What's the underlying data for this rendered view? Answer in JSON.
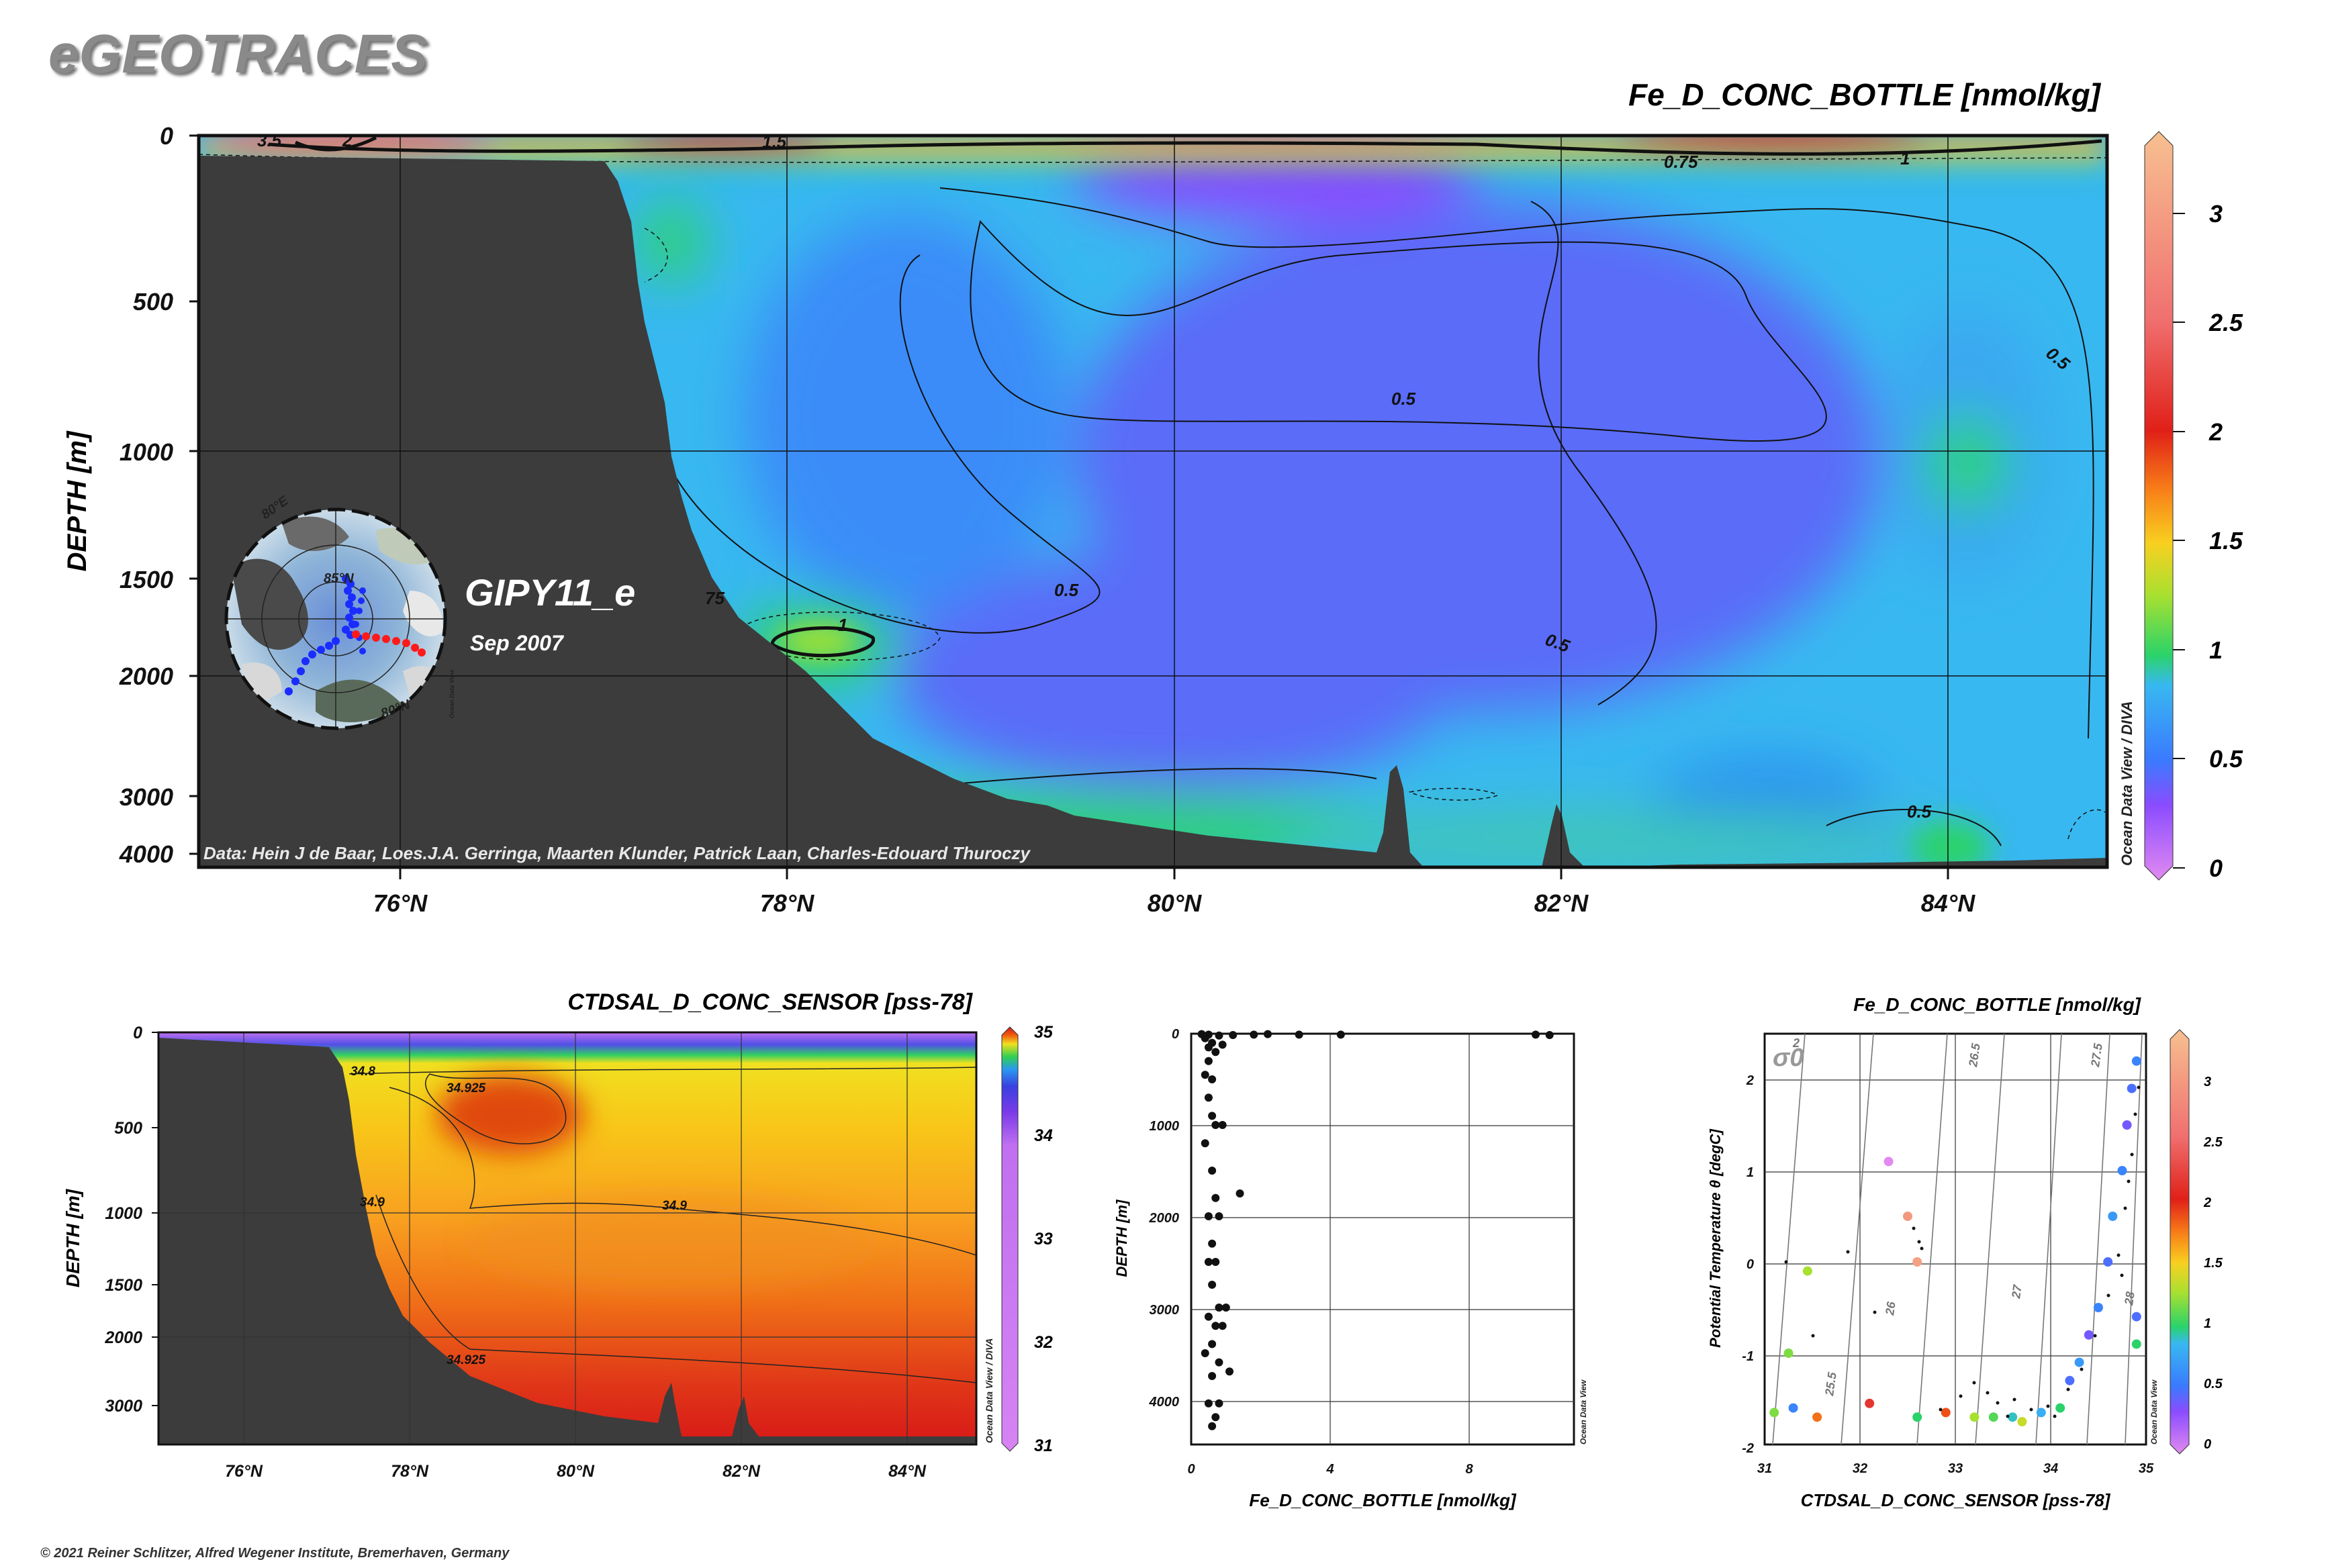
{
  "logo": "eGEOTRACES",
  "copyright": "© 2021 Reiner Schlitzer, Alfred Wegener Institute, Bremerhaven, Germany",
  "colors": {
    "land": "#3c3c3c",
    "scale": [
      "#e28af0",
      "#8a4cff",
      "#3a7aff",
      "#38b8f0",
      "#2ad36a",
      "#f0e030",
      "#f89020",
      "#e02018",
      "#f07070",
      "#f7b88a"
    ],
    "sal_scale": [
      "#d683f3",
      "#9a3ae8",
      "#3a3ae0",
      "#2a90f0",
      "#30d050",
      "#f0e020",
      "#e05010",
      "#d81818"
    ]
  },
  "main": {
    "title": "Fe_D_CONC_BOTTLE [nmol/kg]",
    "ylabel": "DEPTH [m]",
    "section_name": "GIPY11_e",
    "date": "Sep 2007",
    "credits": "Data: Hein J de Baar, Loes.J.A. Gerringa, Maarten Klunder, Patrick Laan, Charles-Edouard Thuroczy",
    "watermark": "Ocean Data View / DIVA",
    "y_ticks": [
      "0",
      "500",
      "1000",
      "1500",
      "2000",
      "3000",
      "4000"
    ],
    "x_ticks": [
      "76°N",
      "78°N",
      "80°N",
      "82°N",
      "84°N"
    ],
    "contour_labels": [
      "3.5",
      "2",
      "1.5",
      "0.75",
      "1",
      "0.5",
      "0.5",
      "0.5",
      "0.5",
      "0.5",
      "1",
      "75"
    ],
    "colorbar": {
      "ticks": [
        "3",
        "2.5",
        "2",
        "1.5",
        "1",
        "0.5",
        "0"
      ],
      "range": [
        0,
        3.4
      ]
    },
    "inset_labels": [
      "80°E",
      "85°N",
      "80°N",
      "Ocean Data View"
    ]
  },
  "salinity": {
    "title": "CTDSAL_D_CONC_SENSOR [pss-78]",
    "ylabel": "DEPTH [m]",
    "watermark": "Ocean Data View / DIVA",
    "y_ticks": [
      "0",
      "500",
      "1000",
      "1500",
      "2000",
      "3000"
    ],
    "x_ticks": [
      "76°N",
      "78°N",
      "80°N",
      "82°N",
      "84°N"
    ],
    "contour_labels": [
      "34.8",
      "34.925",
      "34.9",
      "34.9",
      "34.925"
    ],
    "colorbar": {
      "ticks": [
        "35",
        "34",
        "33",
        "32",
        "31"
      ],
      "range": [
        31,
        35
      ]
    }
  },
  "profile": {
    "xlabel": "Fe_D_CONC_BOTTLE [nmol/kg]",
    "ylabel": "DEPTH [m]",
    "watermark": "Ocean Data View",
    "x_ticks": [
      "0",
      "4",
      "8"
    ],
    "y_ticks": [
      "0",
      "1000",
      "2000",
      "3000",
      "4000"
    ]
  },
  "ts": {
    "title": "Fe_D_CONC_BOTTLE [nmol/kg]",
    "xlabel": "CTDSAL_D_CONC_SENSOR [pss-78]",
    "ylabel": "Potential Temperature θ [degC]",
    "sigma_label": "σ0",
    "watermark": "Ocean Data View",
    "x_ticks": [
      "31",
      "32",
      "33",
      "34",
      "35"
    ],
    "y_ticks": [
      "2",
      "1",
      "0",
      "-1",
      "-2"
    ],
    "isopycnal_labels": [
      "2",
      "25.5",
      "26",
      "26.5",
      "27",
      "27.5",
      "28"
    ],
    "colorbar": {
      "ticks": [
        "3",
        "2.5",
        "2",
        "1.5",
        "1",
        "0.5",
        "0"
      ],
      "range": [
        0,
        3.4
      ]
    }
  },
  "chart_data": [
    {
      "type": "heatmap",
      "title": "Fe_D_CONC_BOTTLE [nmol/kg]",
      "xlabel": "",
      "ylabel": "DEPTH [m]",
      "x_ticks": [
        "76°N",
        "78°N",
        "80°N",
        "82°N",
        "84°N"
      ],
      "y_ticks": [
        0,
        500,
        1000,
        1500,
        2000,
        3000,
        4000
      ],
      "xlim": [
        74.9,
        84.85
      ],
      "ylim": [
        4000,
        0
      ],
      "color_range": [
        0,
        3.4
      ],
      "contour_levels": [
        0.5,
        0.75,
        1,
        1.5,
        2,
        3.5
      ],
      "bathymetry": [
        [
          74.9,
          110
        ],
        [
          77.1,
          130
        ],
        [
          77.3,
          700
        ],
        [
          77.5,
          1200
        ],
        [
          77.7,
          1700
        ],
        [
          78.0,
          2000
        ],
        [
          78.4,
          2400
        ],
        [
          79.0,
          3000
        ],
        [
          79.8,
          3700
        ],
        [
          80.6,
          3950
        ],
        [
          81.0,
          3950
        ],
        [
          81.15,
          3000
        ],
        [
          81.3,
          3950
        ],
        [
          81.9,
          3950
        ],
        [
          82.0,
          3200
        ],
        [
          82.15,
          3950
        ],
        [
          84.85,
          3950
        ]
      ],
      "grid": true
    },
    {
      "type": "heatmap",
      "title": "CTDSAL_D_CONC_SENSOR [pss-78]",
      "ylabel": "DEPTH [m]",
      "x_ticks": [
        "76°N",
        "78°N",
        "80°N",
        "82°N",
        "84°N"
      ],
      "y_ticks": [
        0,
        500,
        1000,
        1500,
        2000,
        3000
      ],
      "xlim": [
        74.9,
        84.85
      ],
      "color_range": [
        31,
        35
      ],
      "contour_levels": [
        34.8,
        34.9,
        34.925
      ],
      "grid": true
    },
    {
      "type": "scatter",
      "xlabel": "Fe_D_CONC_BOTTLE [nmol/kg]",
      "ylabel": "DEPTH [m]",
      "xlim": [
        0,
        11
      ],
      "ylim": [
        4500,
        0
      ],
      "points": [
        [
          0.3,
          5
        ],
        [
          0.5,
          10
        ],
        [
          0.8,
          20
        ],
        [
          1.2,
          15
        ],
        [
          1.8,
          10
        ],
        [
          2.2,
          5
        ],
        [
          3.1,
          10
        ],
        [
          4.3,
          10
        ],
        [
          9.9,
          10
        ],
        [
          10.3,
          15
        ],
        [
          0.4,
          50
        ],
        [
          0.6,
          100
        ],
        [
          0.5,
          150
        ],
        [
          0.7,
          200
        ],
        [
          0.9,
          120
        ],
        [
          0.5,
          300
        ],
        [
          0.4,
          450
        ],
        [
          0.6,
          500
        ],
        [
          0.5,
          700
        ],
        [
          0.6,
          900
        ],
        [
          0.7,
          1000
        ],
        [
          0.9,
          1000
        ],
        [
          0.4,
          1200
        ],
        [
          0.6,
          1500
        ],
        [
          0.7,
          1800
        ],
        [
          1.4,
          1750
        ],
        [
          0.5,
          2000
        ],
        [
          0.8,
          2000
        ],
        [
          0.6,
          2300
        ],
        [
          0.5,
          2500
        ],
        [
          0.7,
          2500
        ],
        [
          0.6,
          2750
        ],
        [
          0.8,
          3000
        ],
        [
          1.0,
          3000
        ],
        [
          0.5,
          3100
        ],
        [
          0.7,
          3200
        ],
        [
          0.9,
          3200
        ],
        [
          0.6,
          3400
        ],
        [
          0.4,
          3500
        ],
        [
          0.8,
          3600
        ],
        [
          0.6,
          3750
        ],
        [
          1.1,
          3700
        ],
        [
          0.5,
          4050
        ],
        [
          0.8,
          4050
        ],
        [
          0.7,
          4200
        ],
        [
          0.6,
          4300
        ]
      ],
      "grid": true
    },
    {
      "type": "scatter",
      "title": "Fe_D_CONC_BOTTLE [nmol/kg]",
      "xlabel": "CTDSAL_D_CONC_SENSOR [pss-78]",
      "ylabel": "Potential Temperature θ [degC]",
      "xlim": [
        31,
        35
      ],
      "ylim": [
        -2,
        2.5
      ],
      "color_range": [
        0,
        3.4
      ],
      "points": [
        [
          31.1,
          -1.65,
          1.2
        ],
        [
          31.3,
          -1.6,
          0.6
        ],
        [
          31.55,
          -1.7,
          1.8
        ],
        [
          31.25,
          -1.0,
          1.2
        ],
        [
          31.45,
          -0.1,
          1.3
        ],
        [
          32.1,
          -1.55,
          2.2
        ],
        [
          32.3,
          1.1,
          0
        ],
        [
          32.5,
          0.5,
          3.0
        ],
        [
          32.6,
          0.0,
          3.1
        ],
        [
          32.6,
          -1.7,
          1.0
        ],
        [
          32.9,
          -1.65,
          1.9
        ],
        [
          33.2,
          -1.7,
          1.3
        ],
        [
          33.4,
          -1.7,
          1.1
        ],
        [
          33.6,
          -1.7,
          0.9
        ],
        [
          33.7,
          -1.75,
          1.4
        ],
        [
          33.9,
          -1.65,
          0.8
        ],
        [
          34.1,
          -1.6,
          1.0
        ],
        [
          34.2,
          -1.3,
          0.5
        ],
        [
          34.3,
          -1.1,
          0.7
        ],
        [
          34.4,
          -0.8,
          0.4
        ],
        [
          34.5,
          -0.5,
          0.6
        ],
        [
          34.6,
          0.0,
          0.5
        ],
        [
          34.65,
          0.5,
          0.7
        ],
        [
          34.75,
          1.0,
          0.6
        ],
        [
          34.8,
          1.5,
          0.4
        ],
        [
          34.85,
          1.9,
          0.5
        ],
        [
          34.9,
          2.2,
          0.6
        ],
        [
          34.9,
          -0.6,
          0.5
        ],
        [
          34.9,
          -0.9,
          1.0
        ]
      ],
      "grid": true
    }
  ]
}
